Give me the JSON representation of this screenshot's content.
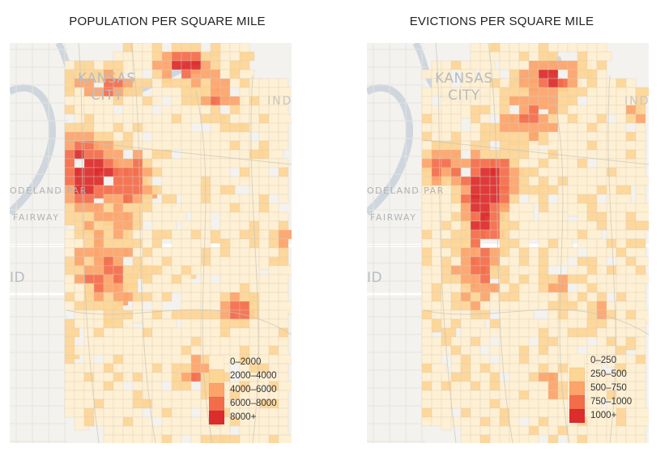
{
  "colors": {
    "bin0": "#fef0d2",
    "bin1": "#fdd595",
    "bin2": "#fca46a",
    "bin3": "#f46d4a",
    "bin4": "#dd2c2c",
    "base_map": "#f3f2ee",
    "road": "#c8c4bb",
    "river": "#cfd6de"
  },
  "maps": [
    {
      "title": "POPULATION PER SQUARE MILE",
      "labels": [
        "KANSAS",
        "CITY",
        "ODELAND PAR",
        "FAIRWAY",
        "ID",
        "IND"
      ],
      "legend": [
        "0–2000",
        "2000–4000",
        "4000–6000",
        "6000–8000",
        "8000+"
      ]
    },
    {
      "title": "EVICTIONS PER SQUARE MILE",
      "labels": [
        "KANSAS",
        "CITY",
        "ODELAND PAR",
        "FAIRWAY",
        "ID",
        "IND"
      ],
      "legend": [
        "0–250",
        "250–500",
        "500–750",
        "750–1000",
        "1000+"
      ]
    }
  ]
}
